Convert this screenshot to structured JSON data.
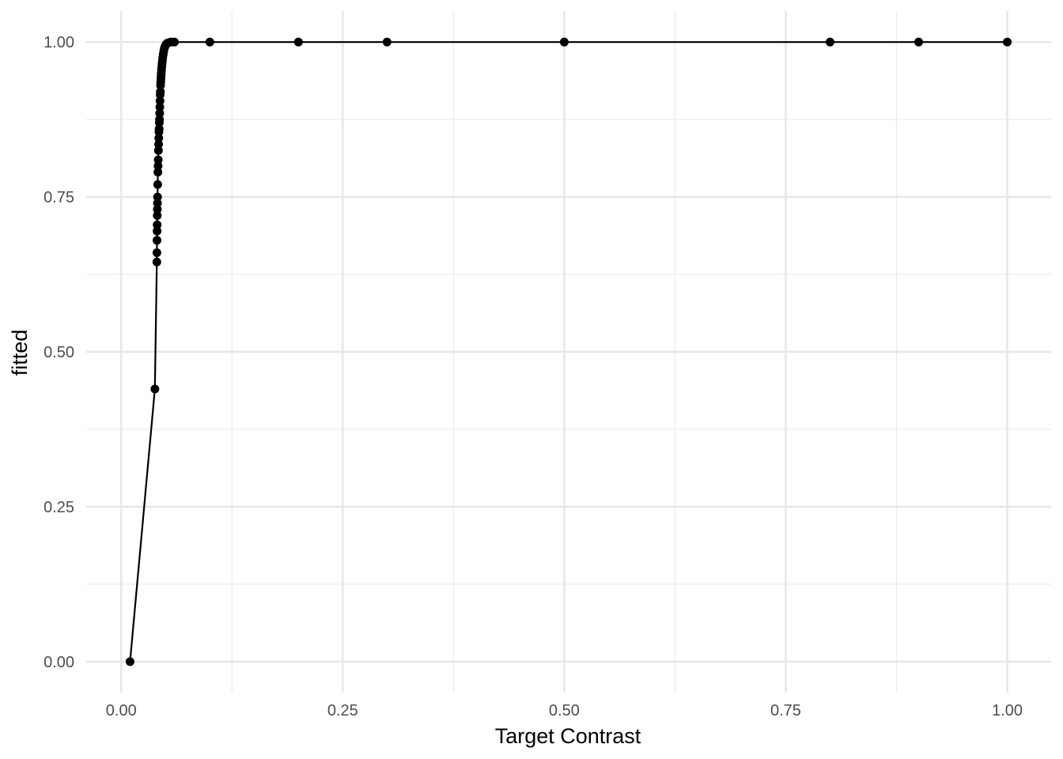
{
  "chart_data": {
    "type": "line",
    "title": "",
    "xlabel": "Target Contrast",
    "ylabel": "fitted",
    "xlim": [
      -0.0395,
      1.0495
    ],
    "ylim": [
      -0.05,
      1.05
    ],
    "x_ticks": [
      0.0,
      0.25,
      0.5,
      0.75,
      1.0
    ],
    "x_tick_labels": [
      "0.00",
      "0.25",
      "0.50",
      "0.75",
      "1.00"
    ],
    "y_ticks": [
      0.0,
      0.25,
      0.5,
      0.75,
      1.0
    ],
    "y_tick_labels": [
      "0.00",
      "0.25",
      "0.50",
      "0.75",
      "1.00"
    ],
    "grid": true,
    "legend": "none",
    "series": [
      {
        "markers": true,
        "color": "#000000",
        "x": [
          0.01,
          0.038,
          0.0402,
          0.0403,
          0.0404,
          0.0405,
          0.0406,
          0.0407,
          0.0408,
          0.0409,
          0.041,
          0.0412,
          0.0414,
          0.0416,
          0.0418,
          0.042,
          0.0422,
          0.0424,
          0.0426,
          0.0428,
          0.043,
          0.0432,
          0.0434,
          0.0436,
          0.0438,
          0.044,
          0.0442,
          0.0444,
          0.0446,
          0.0448,
          0.045,
          0.0452,
          0.0455,
          0.0458,
          0.0461,
          0.0465,
          0.0469,
          0.0474,
          0.048,
          0.0487,
          0.0495,
          0.0505,
          0.0518,
          0.0535,
          0.056,
          0.06,
          0.1,
          0.2,
          0.3,
          0.5,
          0.8,
          0.9,
          1.0
        ],
        "y": [
          0.0,
          0.44,
          0.645,
          0.66,
          0.68,
          0.695,
          0.705,
          0.72,
          0.73,
          0.74,
          0.75,
          0.77,
          0.79,
          0.8,
          0.81,
          0.825,
          0.835,
          0.845,
          0.855,
          0.86,
          0.87,
          0.875,
          0.885,
          0.895,
          0.905,
          0.915,
          0.92,
          0.93,
          0.935,
          0.94,
          0.945,
          0.95,
          0.955,
          0.96,
          0.965,
          0.97,
          0.975,
          0.98,
          0.985,
          0.99,
          0.993,
          0.996,
          0.998,
          0.999,
          1.0,
          1.0,
          1.0,
          1.0,
          1.0,
          1.0,
          1.0,
          1.0,
          1.0
        ]
      }
    ]
  }
}
